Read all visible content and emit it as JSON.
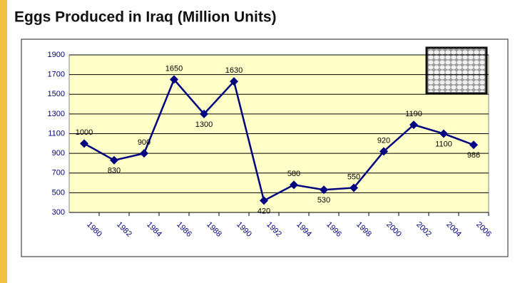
{
  "chart_data": {
    "type": "line",
    "title": "Eggs Produced in Iraq (Million Units)",
    "categories": [
      "1980",
      "1982",
      "1984",
      "1986",
      "1988",
      "1990",
      "1992",
      "1994",
      "1996",
      "1998",
      "2000",
      "2002",
      "2004",
      "2006"
    ],
    "series": [
      {
        "name": "Eggs",
        "color": "#000080",
        "values": [
          1000,
          830,
          900,
          1650,
          1300,
          1630,
          420,
          580,
          530,
          550,
          920,
          1190,
          1100,
          986
        ]
      }
    ],
    "ylim": [
      300,
      1900
    ],
    "yticks": [
      300,
      500,
      700,
      900,
      1100,
      1300,
      1500,
      1700,
      1900
    ],
    "grid": true
  }
}
